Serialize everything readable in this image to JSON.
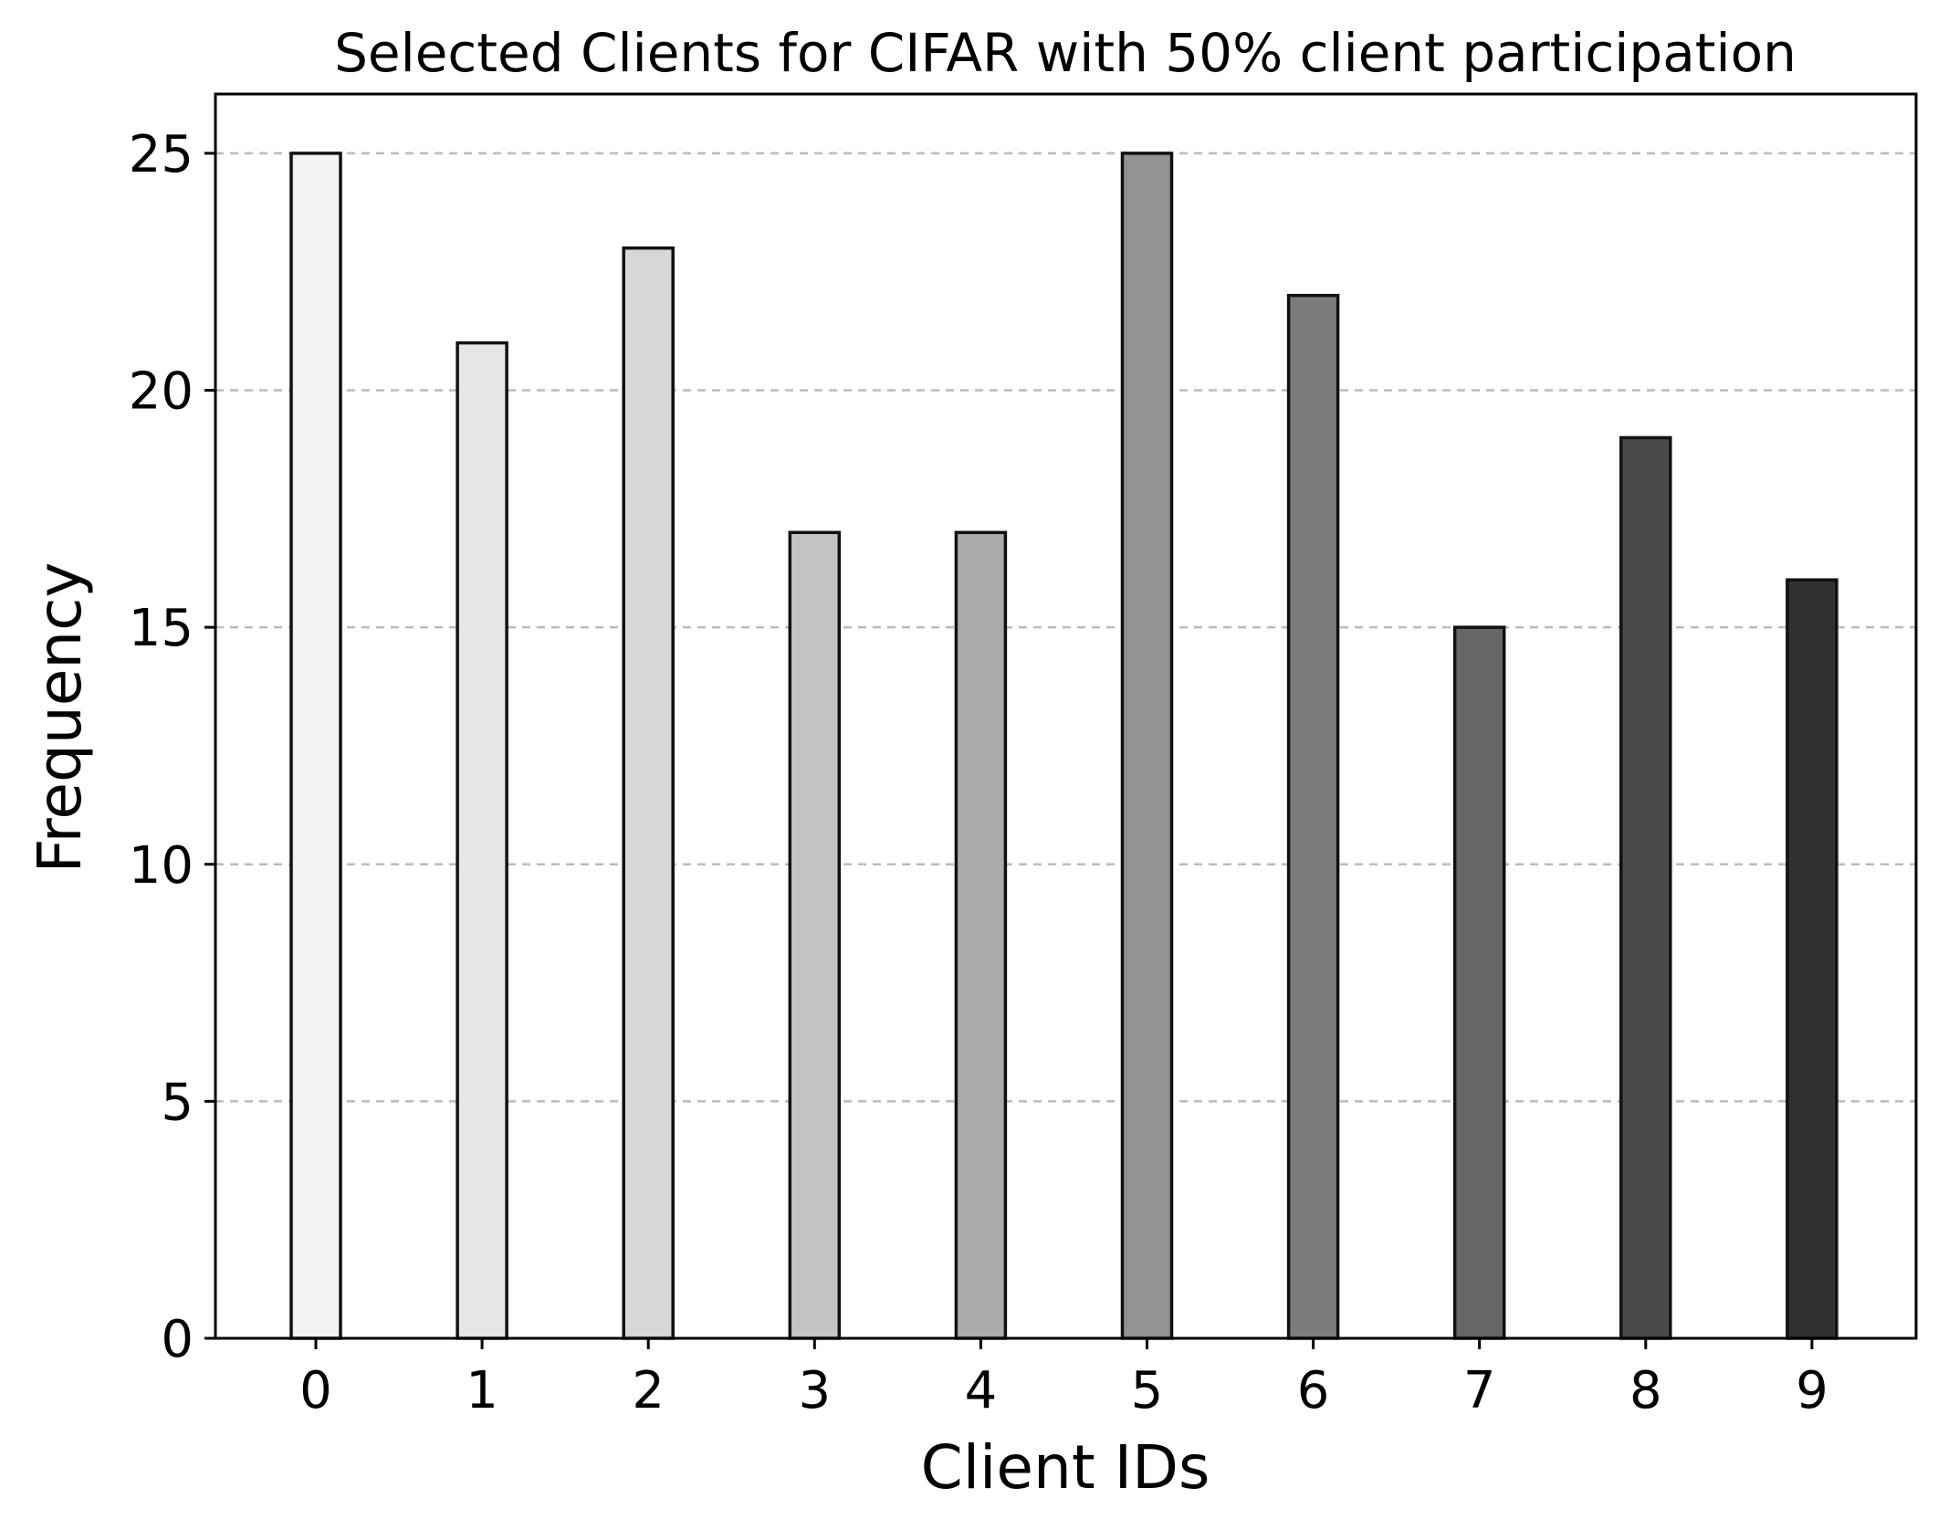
{
  "chart_data": {
    "type": "bar",
    "title": "Selected Clients for CIFAR with 50% client participation",
    "xlabel": "Client IDs",
    "ylabel": "Frequency",
    "categories": [
      "0",
      "1",
      "2",
      "3",
      "4",
      "5",
      "6",
      "7",
      "8",
      "9"
    ],
    "values": [
      25,
      21,
      23,
      17,
      17,
      25,
      22,
      15,
      19,
      16
    ],
    "colors": [
      "#f2f2f2",
      "#e6e6e6",
      "#d7d7d7",
      "#c4c4c4",
      "#ababab",
      "#939393",
      "#7c7c7c",
      "#666666",
      "#4a4a4a",
      "#303030"
    ],
    "ylim": [
      0,
      26.25
    ],
    "yticks": [
      0,
      5,
      10,
      15,
      20,
      25
    ],
    "grid": "y-dashed",
    "legend": "none"
  }
}
